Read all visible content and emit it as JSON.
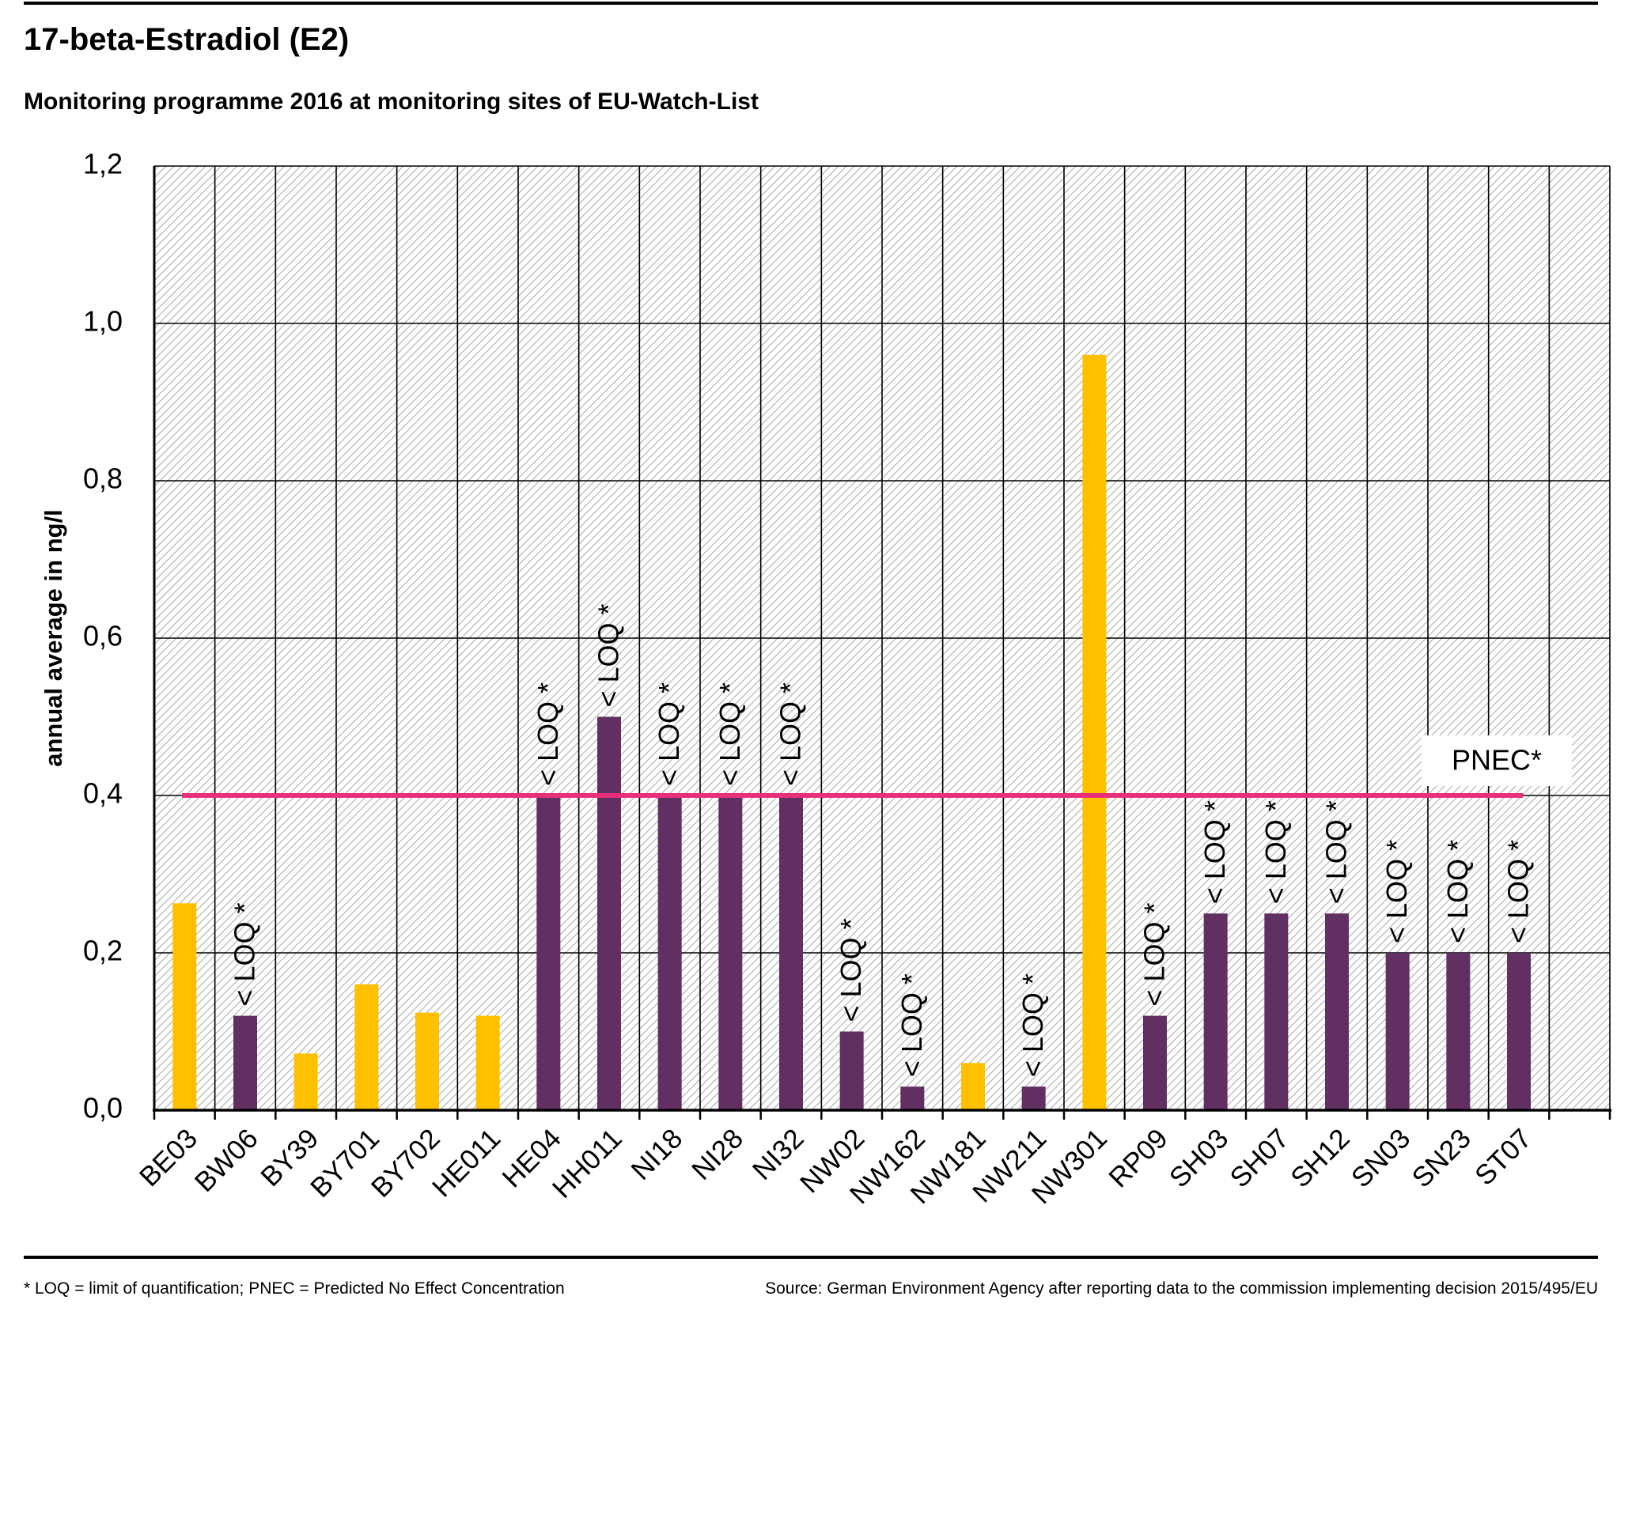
{
  "header": {
    "title": "17-beta-Estradiol (E2)",
    "subtitle": "Monitoring programme 2016 at monitoring sites of EU-Watch-List"
  },
  "footer": {
    "footnote": "* LOQ = limit of quantification; PNEC = Predicted No Effect Concentration",
    "source": "Source: German Environment Agency after reporting data to the commission implementing decision 2015/495/EU"
  },
  "colors": {
    "measured": "#FFC000",
    "below_loq": "#622F63",
    "pnec_line": "#E8307A",
    "hatch": "#bdbdbd",
    "grid": "#000000"
  },
  "chart_data": {
    "type": "bar",
    "title": "17-beta-Estradiol (E2)",
    "subtitle": "Monitoring programme 2016 at monitoring sites of EU-Watch-List",
    "xlabel": "",
    "ylabel": "annual average in ng/l",
    "ylim": [
      0,
      1.2
    ],
    "yticks": [
      "0,0",
      "0,2",
      "0,4",
      "0,6",
      "0,8",
      "1,0",
      "1,2"
    ],
    "grid": true,
    "categories": [
      "BE03",
      "BW06",
      "BY39",
      "BY701",
      "BY702",
      "HE011",
      "HE04",
      "HH011",
      "NI18",
      "NI28",
      "NI32",
      "NW02",
      "NW162",
      "NW181",
      "NW211",
      "NW301",
      "RP09",
      "SH03",
      "SH07",
      "SH12",
      "SN03",
      "SN23",
      "ST07"
    ],
    "values": [
      0.263,
      0.12,
      0.072,
      0.16,
      0.124,
      0.12,
      0.4,
      0.5,
      0.4,
      0.4,
      0.4,
      0.1,
      0.03,
      0.06,
      0.03,
      0.96,
      0.12,
      0.25,
      0.25,
      0.25,
      0.2,
      0.2,
      0.2
    ],
    "below_loq": [
      false,
      true,
      false,
      false,
      false,
      false,
      true,
      true,
      true,
      true,
      true,
      true,
      true,
      false,
      true,
      false,
      true,
      true,
      true,
      true,
      true,
      true,
      true
    ],
    "loq_label": "< LOQ *",
    "reference_line": {
      "name": "PNEC*",
      "value": 0.4
    }
  }
}
